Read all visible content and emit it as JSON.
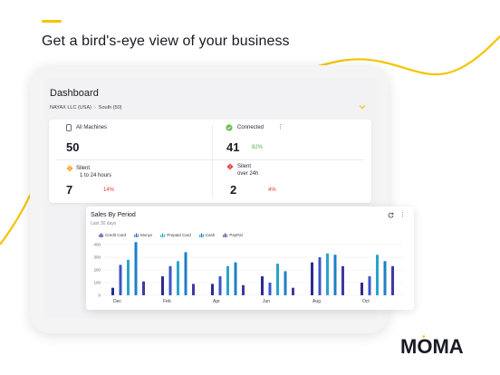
{
  "headline": "Get a bird's-eye view of your business",
  "brand": {
    "name": "MOMA",
    "accent": "#f5c400"
  },
  "dashboard": {
    "title": "Dashboard",
    "breadcrumb": [
      "NAYAX LLC (USA)",
      "South (50)"
    ],
    "stats": {
      "all_machines": {
        "label": "All Machines",
        "value": "50",
        "icon": "tablet-icon"
      },
      "connected": {
        "label": "Connected",
        "value": "41",
        "pct": "82%",
        "icon": "check-circle-icon",
        "color": "#6bbf59"
      },
      "silent_short": {
        "label_line1": "Silent",
        "label_line2": "1 to 24 hours",
        "value": "7",
        "pct": "14%",
        "icon": "warning-diamond-icon",
        "color": "#f5a623"
      },
      "silent_long": {
        "label_line1": "Silent",
        "label_line2": "over 24h",
        "value": "2",
        "pct": "4%",
        "icon": "alert-diamond-icon",
        "color": "#e53935"
      }
    }
  },
  "sales": {
    "title": "Sales By Period",
    "subtitle": "Last 30 days",
    "legend": [
      {
        "name": "Credit Card",
        "color": "#2b2a8c"
      },
      {
        "name": "Monyx",
        "color": "#3a56c8"
      },
      {
        "name": "Prepaid Card",
        "color": "#2aa3c9"
      },
      {
        "name": "Cash",
        "color": "#1e7fc8"
      },
      {
        "name": "PayPal",
        "color": "#3d3a9e"
      }
    ]
  },
  "chart_data": {
    "type": "bar",
    "categories": [
      "Dec",
      "Feb",
      "Apr",
      "Jun",
      "Aug",
      "Oct"
    ],
    "ylim": [
      0,
      400
    ],
    "yticks": [
      "0",
      "100",
      "200",
      "300",
      "400"
    ],
    "series": [
      {
        "name": "Credit Card",
        "color": "#2b2a8c",
        "values": [
          60,
          150,
          90,
          150,
          260,
          100
        ]
      },
      {
        "name": "Monyx",
        "color": "#3a56c8",
        "values": [
          240,
          230,
          150,
          100,
          300,
          150
        ]
      },
      {
        "name": "Prepaid Card",
        "color": "#2aa3c9",
        "values": [
          280,
          270,
          230,
          250,
          330,
          320
        ]
      },
      {
        "name": "Cash",
        "color": "#1e7fc8",
        "values": [
          420,
          340,
          260,
          190,
          320,
          270
        ]
      },
      {
        "name": "PayPal",
        "color": "#3d3a9e",
        "values": [
          110,
          90,
          80,
          60,
          230,
          230
        ]
      }
    ]
  }
}
